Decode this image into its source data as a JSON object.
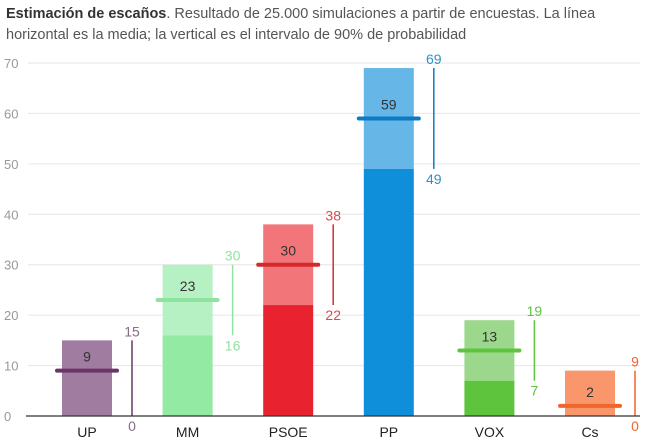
{
  "title_bold": "Estimación de escaños",
  "title_rest": ". Resultado de 25.000 simulaciones a partir de encuestas. La línea horizontal es la media; la vertical es el intervalo de 90% de probabilidad",
  "chart_data": {
    "type": "bar",
    "ylim": [
      0,
      70
    ],
    "yticks": [
      0,
      10,
      20,
      30,
      40,
      50,
      60,
      70
    ],
    "grid": true,
    "categories": [
      "UP",
      "MM",
      "PSOE",
      "PP",
      "VOX",
      "Cs"
    ],
    "series": [
      {
        "party": "UP",
        "mean": 9,
        "low": 0,
        "high": 15,
        "color_light": "#a07ca0",
        "color_dark": "#a07ca0",
        "color_line": "#6a3566",
        "color_label": "#8a6a8a"
      },
      {
        "party": "MM",
        "mean": 23,
        "low": 16,
        "high": 30,
        "color_light": "#b6f1c4",
        "color_dark": "#92eaa3",
        "color_line": "#8fe3a0",
        "color_label": "#8fe3a0"
      },
      {
        "party": "PSOE",
        "mean": 30,
        "low": 22,
        "high": 38,
        "color_light": "#f27679",
        "color_dark": "#e8232f",
        "color_line": "#d42a2c",
        "color_label": "#d94a4f"
      },
      {
        "party": "PP",
        "mean": 59,
        "low": 49,
        "high": 69,
        "color_light": "#67b6e8",
        "color_dark": "#0f8fda",
        "color_line": "#0a7bc4",
        "color_label": "#2a93c6"
      },
      {
        "party": "VOX",
        "mean": 13,
        "low": 7,
        "high": 19,
        "color_light": "#9cd88b",
        "color_dark": "#5ec43e",
        "color_line": "#5ec43e",
        "color_label": "#5ec43e"
      },
      {
        "party": "Cs",
        "mean": 2,
        "low": 0,
        "high": 9,
        "color_light": "#f9966b",
        "color_dark": "#f9966b",
        "color_line": "#f0652b",
        "color_label": "#f0652b"
      }
    ]
  }
}
